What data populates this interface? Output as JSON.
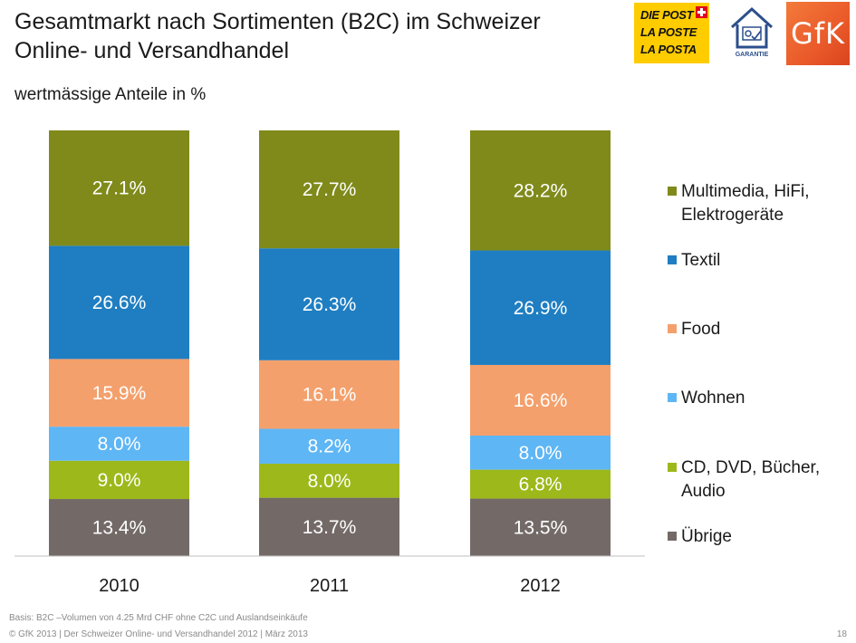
{
  "header": {
    "title_line1": "Gesamtmarkt nach Sortimenten (B2C) im Schweizer",
    "title_line2": "Online- und Versandhandel",
    "subtitle": "wertmässige Anteile in %"
  },
  "logos": {
    "post_lines": [
      "DIE POST",
      "LA POSTE",
      "LA POSTA"
    ],
    "garantie_label": "GARANTIE",
    "gfk_wordmark": "GfK"
  },
  "colors": {
    "multimedia": "#7f8a1a",
    "textil": "#1f7ec2",
    "food": "#f4a06c",
    "wohnen": "#5eb6f5",
    "cd": "#9db81a",
    "uebrige": "#736a68",
    "post_yellow": "#ffcc00",
    "gfk_orange": "#ea5a2a"
  },
  "chart_data": {
    "type": "bar",
    "stacked": true,
    "categories": [
      "2010",
      "2011",
      "2012"
    ],
    "series": [
      {
        "name": "Übrige",
        "key": "uebrige",
        "values": [
          13.4,
          13.7,
          13.5
        ],
        "labels": [
          "13.4%",
          "13.7%",
          "13.5%"
        ]
      },
      {
        "name": "CD, DVD, Bücher, Audio",
        "key": "cd",
        "values": [
          9.0,
          8.0,
          6.8
        ],
        "labels": [
          "9.0%",
          "8.0%",
          "6.8%"
        ]
      },
      {
        "name": "Wohnen",
        "key": "wohnen",
        "values": [
          8.0,
          8.2,
          8.0
        ],
        "labels": [
          "8.0%",
          "8.2%",
          "8.0%"
        ]
      },
      {
        "name": "Food",
        "key": "food",
        "values": [
          15.9,
          16.1,
          16.6
        ],
        "labels": [
          "15.9%",
          "16.1%",
          "16.6%"
        ]
      },
      {
        "name": "Textil",
        "key": "textil",
        "values": [
          26.6,
          26.3,
          26.9
        ],
        "labels": [
          "26.6%",
          "26.3%",
          "26.9%"
        ]
      },
      {
        "name": "Multimedia, HiFi, Elektrogeräte",
        "key": "multimedia",
        "values": [
          27.1,
          27.7,
          28.2
        ],
        "labels": [
          "27.1%",
          "27.7%",
          "28.2%"
        ]
      }
    ],
    "legend": [
      {
        "key": "multimedia",
        "lines": [
          "Multimedia, HiFi,",
          "Elektrogeräte"
        ]
      },
      {
        "key": "textil",
        "lines": [
          "Textil"
        ]
      },
      {
        "key": "food",
        "lines": [
          "Food"
        ]
      },
      {
        "key": "wohnen",
        "lines": [
          "Wohnen"
        ]
      },
      {
        "key": "cd",
        "lines": [
          "CD, DVD, Bücher,",
          "Audio"
        ]
      },
      {
        "key": "uebrige",
        "lines": [
          "Übrige"
        ]
      }
    ],
    "ylim": [
      0,
      100
    ],
    "grid": false,
    "legend_position": "right"
  },
  "footer": {
    "basis": "Basis: B2C –Volumen von 4.25 Mrd CHF ohne C2C und Auslandseinkäufe",
    "source": "© GfK 2013 | Der Schweizer Online- und Versandhandel 2012 | März 2013",
    "page": "18"
  }
}
